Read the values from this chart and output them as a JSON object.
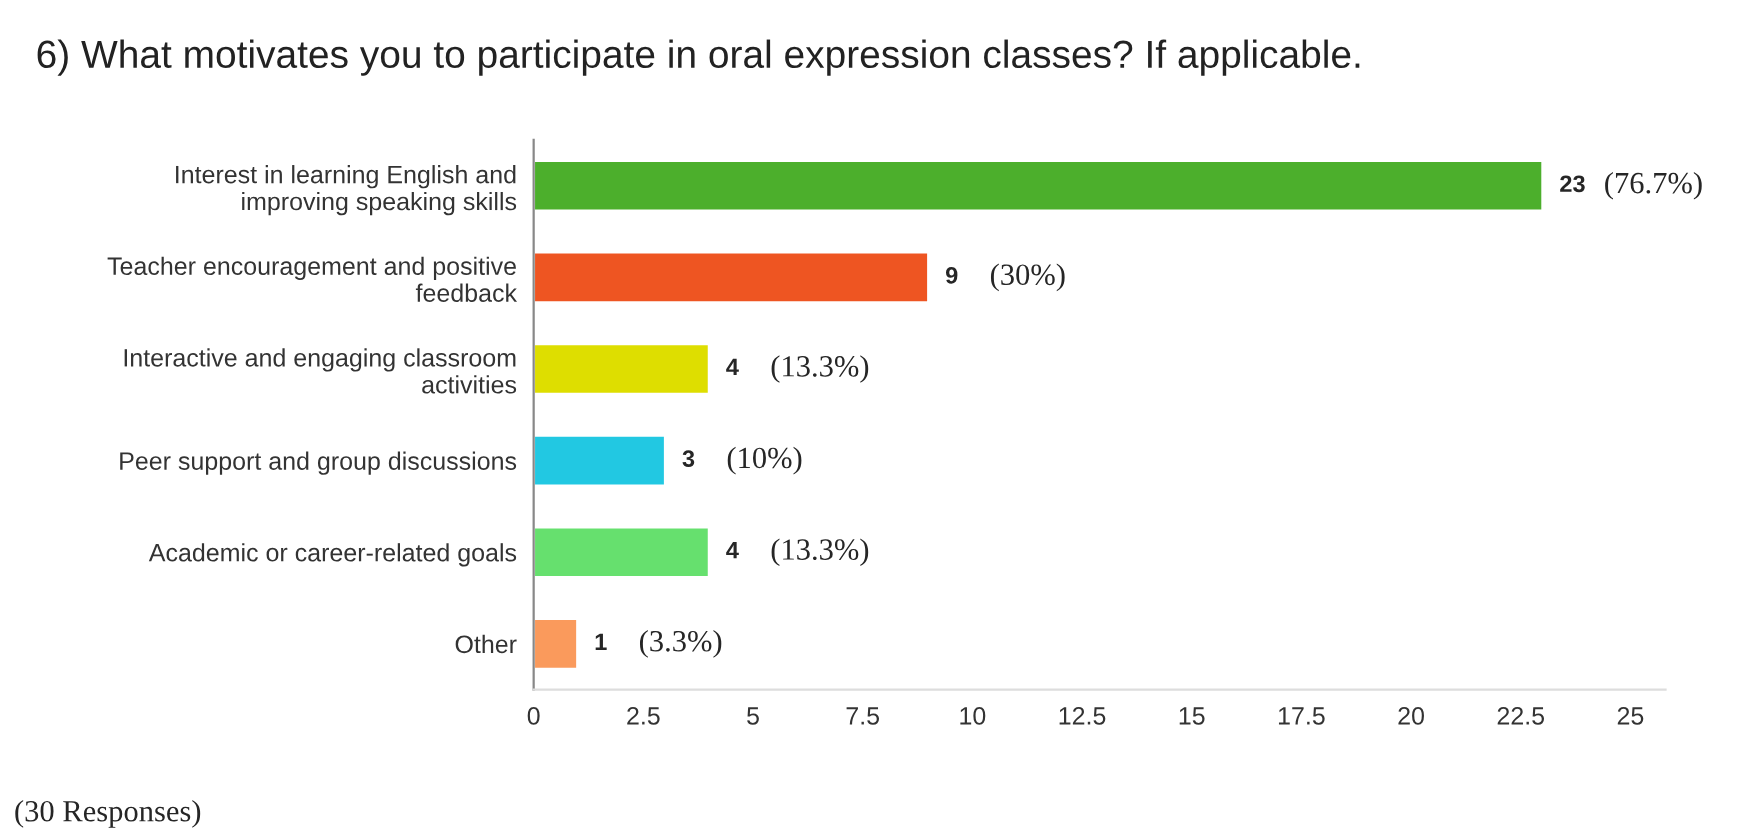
{
  "chart_data": {
    "type": "bar",
    "orientation": "horizontal",
    "title": "6) What motivates you to participate in oral expression classes? If applicable.",
    "categories": [
      "Interest in learning English and\nimproving speaking skills",
      "Teacher encouragement and positive\nfeedback",
      "Interactive and engaging classroom\nactivities",
      "Peer support and group discussions",
      "Academic or career-related goals",
      "Other"
    ],
    "values": [
      23,
      9,
      4,
      3,
      4,
      1
    ],
    "colors": [
      "#4caf2c",
      "#ee5522",
      "#dede00",
      "#22c8e2",
      "#66e06e",
      "#fa9a5c"
    ],
    "xlim": [
      0,
      25.8
    ],
    "xticks": [
      0,
      2.5,
      5,
      7.5,
      10,
      12.5,
      15,
      17.5,
      20,
      22.5,
      25
    ],
    "grid": false,
    "data_labels": true,
    "annotations": [
      {
        "text": "(76.7%)",
        "x": 23,
        "y": "Interest in learning English and\nimproving speaking skills"
      },
      {
        "text": "(30%)",
        "x": 9,
        "y": "Teacher encouragement and positive\nfeedback"
      },
      {
        "text": "(13.3%)",
        "x": 4,
        "y": "Interactive and engaging classroom\nactivities"
      },
      {
        "text": "(10%)",
        "x": 3,
        "y": "Peer support and group discussions"
      },
      {
        "text": "(13.3%)",
        "x": 4,
        "y": "Academic or career-related goals"
      },
      {
        "text": "(3.3%)",
        "x": 1,
        "y": "Other"
      },
      "(30 Responses)"
    ]
  }
}
